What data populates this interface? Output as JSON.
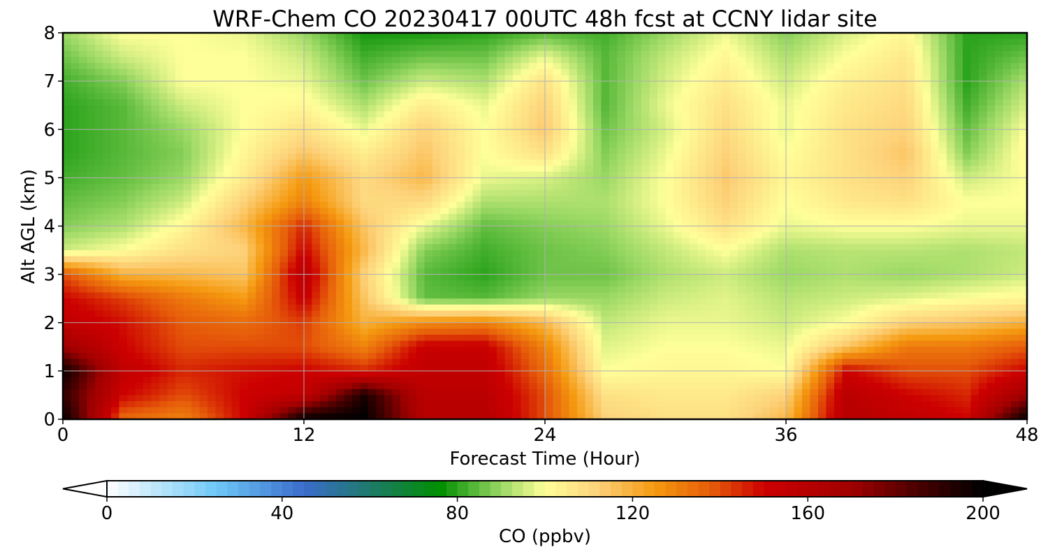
{
  "chart_data": {
    "type": "heatmap",
    "title": "WRF-Chem CO  20230417 00UTC 48h fcst at CCNY lidar site",
    "xlabel": "Forecast Time (Hour)",
    "ylabel": "Alt AGL (km)",
    "xlim": [
      0,
      48
    ],
    "ylim": [
      0,
      8
    ],
    "xticks": [
      "0",
      "12",
      "24",
      "36",
      "48"
    ],
    "yticks": [
      "0",
      "1",
      "2",
      "3",
      "4",
      "5",
      "6",
      "7",
      "8"
    ],
    "grid": true,
    "x": [
      0,
      3,
      6,
      9,
      12,
      15,
      18,
      21,
      24,
      27,
      30,
      33,
      36,
      39,
      42,
      45,
      48
    ],
    "y": [
      0,
      0.5,
      1,
      1.5,
      2,
      2.5,
      3,
      3.5,
      4,
      4.5,
      5,
      5.5,
      6,
      6.5,
      7,
      7.5,
      8
    ],
    "z_units": "ppbv",
    "z": [
      [
        200,
        135,
        130,
        150,
        200,
        200,
        160,
        160,
        140,
        112,
        108,
        108,
        118,
        160,
        155,
        150,
        200
      ],
      [
        190,
        150,
        140,
        150,
        155,
        195,
        158,
        158,
        140,
        108,
        106,
        106,
        112,
        158,
        150,
        145,
        170
      ],
      [
        198,
        155,
        145,
        148,
        150,
        145,
        155,
        155,
        135,
        100,
        102,
        102,
        100,
        150,
        140,
        140,
        150
      ],
      [
        170,
        150,
        140,
        140,
        140,
        130,
        152,
        152,
        130,
        97,
        100,
        100,
        98,
        115,
        132,
        132,
        138
      ],
      [
        155,
        148,
        138,
        135,
        142,
        120,
        128,
        130,
        118,
        94,
        98,
        98,
        95,
        100,
        112,
        115,
        120
      ],
      [
        150,
        142,
        132,
        125,
        152,
        115,
        85,
        84,
        90,
        90,
        95,
        97,
        93,
        95,
        97,
        100,
        102
      ],
      [
        140,
        120,
        118,
        115,
        158,
        112,
        84,
        80,
        86,
        86,
        92,
        95,
        90,
        92,
        90,
        92,
        95
      ],
      [
        95,
        100,
        108,
        112,
        150,
        118,
        88,
        82,
        86,
        88,
        94,
        100,
        92,
        93,
        93,
        92,
        94
      ],
      [
        88,
        92,
        102,
        118,
        145,
        115,
        98,
        85,
        88,
        90,
        98,
        108,
        98,
        100,
        100,
        98,
        98
      ],
      [
        85,
        88,
        95,
        112,
        130,
        110,
        110,
        92,
        92,
        92,
        100,
        112,
        100,
        106,
        108,
        100,
        100
      ],
      [
        82,
        85,
        90,
        105,
        125,
        110,
        118,
        98,
        96,
        90,
        100,
        114,
        102,
        108,
        112,
        95,
        100
      ],
      [
        80,
        84,
        88,
        102,
        115,
        105,
        115,
        100,
        108,
        88,
        98,
        112,
        100,
        108,
        115,
        88,
        102
      ],
      [
        80,
        84,
        90,
        100,
        108,
        98,
        112,
        100,
        114,
        86,
        96,
        110,
        98,
        108,
        112,
        85,
        100
      ],
      [
        80,
        84,
        95,
        100,
        102,
        92,
        105,
        98,
        112,
        84,
        98,
        108,
        98,
        106,
        110,
        82,
        96
      ],
      [
        82,
        88,
        100,
        100,
        98,
        86,
        95,
        92,
        108,
        84,
        96,
        105,
        95,
        104,
        108,
        80,
        92
      ],
      [
        86,
        95,
        100,
        100,
        95,
        82,
        86,
        86,
        98,
        84,
        94,
        102,
        92,
        100,
        106,
        80,
        86
      ],
      [
        90,
        100,
        100,
        98,
        90,
        78,
        78,
        80,
        84,
        82,
        90,
        98,
        88,
        96,
        102,
        80,
        80
      ]
    ],
    "colorbar": {
      "label": "CO  (ppbv)",
      "min": 0,
      "max": 200,
      "ticks": [
        "0",
        "40",
        "80",
        "120",
        "160",
        "200"
      ],
      "extend": "both",
      "colors": [
        {
          "v": 0,
          "c": "#ffffff"
        },
        {
          "v": 25,
          "c": "#6ec8f7"
        },
        {
          "v": 45,
          "c": "#3a6ccc"
        },
        {
          "v": 60,
          "c": "#1e7a6a"
        },
        {
          "v": 76,
          "c": "#008f00"
        },
        {
          "v": 90,
          "c": "#9ad864"
        },
        {
          "v": 100,
          "c": "#ffff99"
        },
        {
          "v": 112,
          "c": "#fdd27a"
        },
        {
          "v": 125,
          "c": "#f59a10"
        },
        {
          "v": 138,
          "c": "#e65c0a"
        },
        {
          "v": 150,
          "c": "#cc0000"
        },
        {
          "v": 170,
          "c": "#a00000"
        },
        {
          "v": 185,
          "c": "#4a0000"
        },
        {
          "v": 200,
          "c": "#000000"
        }
      ]
    }
  }
}
